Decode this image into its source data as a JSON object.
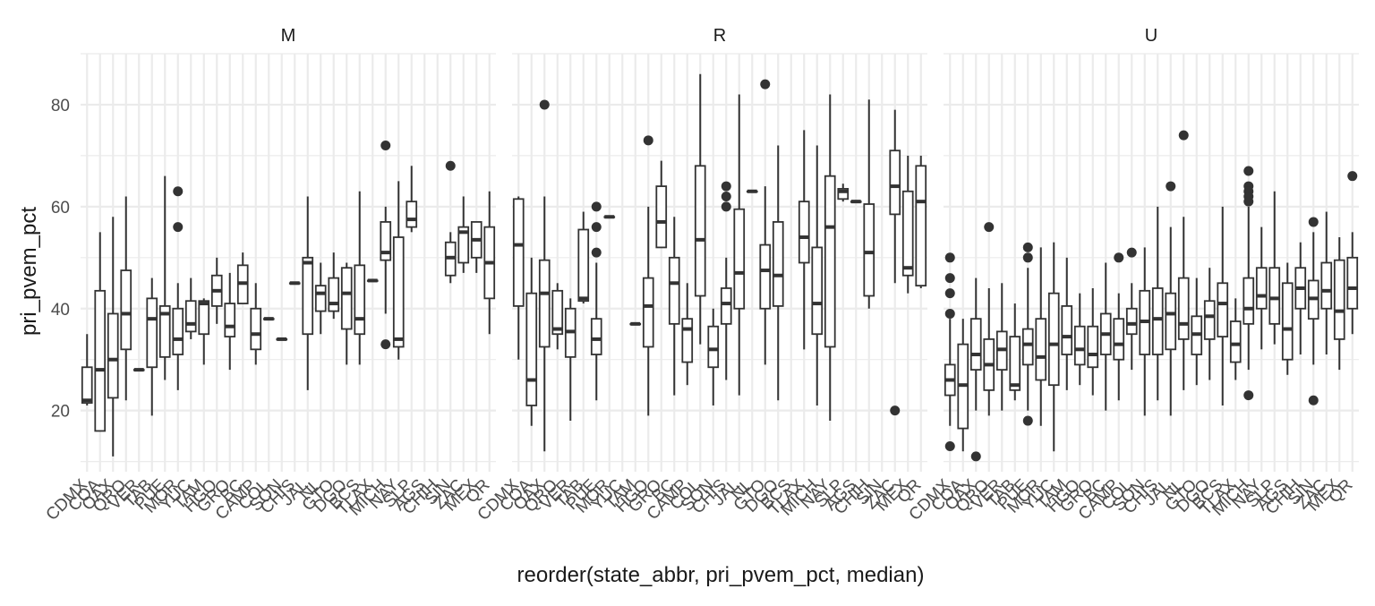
{
  "colors": {
    "background": "#ffffff",
    "grid": "#ebebeb",
    "box": "#333333",
    "text": "#4d4d4d",
    "title": "#1a1a1a"
  },
  "chart_data": {
    "type": "boxplot",
    "xlabel": "reorder(state_abbr, pri_pvem_pct, median)",
    "ylabel": "pri_pvem_pct",
    "ylim": [
      8,
      90
    ],
    "yticks": [
      20,
      40,
      60,
      80
    ],
    "grid": true,
    "categories": [
      "CDMX",
      "COA",
      "OAX",
      "QRO",
      "VER",
      "TAB",
      "PUE",
      "MOR",
      "YUC",
      "TAM",
      "HGO",
      "GRO",
      "BC",
      "CAMP",
      "COL",
      "SON",
      "CHIS",
      "JAL",
      "NL",
      "GTO",
      "DGO",
      "BCS",
      "TLAX",
      "MICH",
      "NAY",
      "SLP",
      "AGS",
      "CHIH",
      "SIN",
      "ZAC",
      "MEX",
      "QR"
    ],
    "xtick_labels": [
      "CDMX",
      "COA",
      "OAX",
      "QRO",
      "VER",
      "TAB",
      "PUE",
      "MOR",
      "YUC",
      "TAM",
      "HGO",
      "GRO",
      "BC",
      "CAMP",
      "COL",
      "SON",
      "CHIS",
      "JAL",
      "NL",
      "GTO",
      "DGO",
      "BCS",
      "TLAX",
      "MICH",
      "NAY",
      "SLP",
      "AGS",
      "CHIH",
      "SIN",
      "ZAC",
      "MEX",
      "QR"
    ],
    "facets": [
      {
        "label": "M",
        "series": [
          {
            "x": 1,
            "min": 21,
            "q1": 21.5,
            "median": 22,
            "q3": 28.5,
            "max": 35,
            "outliers": []
          },
          {
            "x": 2,
            "min": 16,
            "q1": 16,
            "median": 28,
            "q3": 43.5,
            "max": 55,
            "outliers": []
          },
          {
            "x": 3,
            "min": 11,
            "q1": 22.5,
            "median": 30,
            "q3": 39,
            "max": 58,
            "outliers": []
          },
          {
            "x": 4,
            "min": 22,
            "q1": 32,
            "median": 39,
            "q3": 47.5,
            "max": 62,
            "outliers": []
          },
          {
            "x": 5,
            "min": 28,
            "q1": 28,
            "median": 28,
            "q3": 28,
            "max": 28,
            "outliers": []
          },
          {
            "x": 6,
            "min": 19,
            "q1": 28.5,
            "median": 38,
            "q3": 42,
            "max": 46,
            "outliers": []
          },
          {
            "x": 7,
            "min": 26,
            "q1": 30.5,
            "median": 39,
            "q3": 40.5,
            "max": 66,
            "outliers": []
          },
          {
            "x": 8,
            "min": 24,
            "q1": 31,
            "median": 34,
            "q3": 40,
            "max": 45,
            "outliers": [
              63,
              56
            ]
          },
          {
            "x": 9,
            "min": 34,
            "q1": 35.5,
            "median": 37,
            "q3": 41.5,
            "max": 46,
            "outliers": []
          },
          {
            "x": 10,
            "min": 29,
            "q1": 35,
            "median": 41,
            "q3": 41.5,
            "max": 42,
            "outliers": []
          },
          {
            "x": 11,
            "min": 37,
            "q1": 40.5,
            "median": 43.5,
            "q3": 46.5,
            "max": 50,
            "outliers": []
          },
          {
            "x": 12,
            "min": 28,
            "q1": 34.5,
            "median": 36.5,
            "q3": 41,
            "max": 47,
            "outliers": []
          },
          {
            "x": 13,
            "min": 41,
            "q1": 41,
            "median": 45,
            "q3": 48.5,
            "max": 51,
            "outliers": []
          },
          {
            "x": 14,
            "min": 29,
            "q1": 32,
            "median": 35,
            "q3": 40,
            "max": 45,
            "outliers": []
          },
          {
            "x": 15,
            "min": 38,
            "q1": 38,
            "median": 38,
            "q3": 38,
            "max": 38,
            "outliers": []
          },
          {
            "x": 16,
            "min": 34,
            "q1": 34,
            "median": 34,
            "q3": 34,
            "max": 34,
            "outliers": []
          },
          {
            "x": 17,
            "min": 45,
            "q1": 45,
            "median": 45,
            "q3": 45,
            "max": 45,
            "outliers": []
          },
          {
            "x": 18,
            "min": 24,
            "q1": 35,
            "median": 49,
            "q3": 50,
            "max": 62,
            "outliers": []
          },
          {
            "x": 19,
            "min": 35,
            "q1": 39.5,
            "median": 43,
            "q3": 44.5,
            "max": 49,
            "outliers": []
          },
          {
            "x": 20,
            "min": 38,
            "q1": 39.5,
            "median": 41,
            "q3": 46,
            "max": 51,
            "outliers": []
          },
          {
            "x": 21,
            "min": 29,
            "q1": 36,
            "median": 43,
            "q3": 48,
            "max": 49,
            "outliers": []
          },
          {
            "x": 22,
            "min": 29,
            "q1": 35,
            "median": 38,
            "q3": 48.5,
            "max": 63,
            "outliers": []
          },
          {
            "x": 23,
            "min": 45.5,
            "q1": 45.5,
            "median": 45.5,
            "q3": 45.5,
            "max": 45.5,
            "outliers": []
          },
          {
            "x": 24,
            "min": 39,
            "q1": 49.5,
            "median": 51,
            "q3": 57,
            "max": 60,
            "outliers": [
              72,
              33
            ]
          },
          {
            "x": 25,
            "min": 30,
            "q1": 32.5,
            "median": 34,
            "q3": 54,
            "max": 65,
            "outliers": []
          },
          {
            "x": 26,
            "min": 55,
            "q1": 56,
            "median": 57.5,
            "q3": 61,
            "max": 68,
            "outliers": []
          },
          {
            "x": 29,
            "min": 45,
            "q1": 46.5,
            "median": 50,
            "q3": 53,
            "max": 55,
            "outliers": [
              68
            ]
          },
          {
            "x": 30,
            "min": 47,
            "q1": 49,
            "median": 55,
            "q3": 56,
            "max": 62,
            "outliers": []
          },
          {
            "x": 31,
            "min": 47,
            "q1": 50,
            "median": 53.5,
            "q3": 57,
            "max": 57,
            "outliers": []
          },
          {
            "x": 32,
            "min": 35,
            "q1": 42,
            "median": 49,
            "q3": 56,
            "max": 63,
            "outliers": []
          }
        ]
      },
      {
        "label": "R",
        "series": [
          {
            "x": 1,
            "min": 30,
            "q1": 40.5,
            "median": 52.5,
            "q3": 61.5,
            "max": 62,
            "outliers": []
          },
          {
            "x": 2,
            "min": 17,
            "q1": 21,
            "median": 26,
            "q3": 43,
            "max": 50,
            "outliers": []
          },
          {
            "x": 3,
            "min": 12,
            "q1": 32.5,
            "median": 43,
            "q3": 49.5,
            "max": 62,
            "outliers": [
              80
            ]
          },
          {
            "x": 4,
            "min": 32,
            "q1": 35,
            "median": 36,
            "q3": 43.5,
            "max": 45,
            "outliers": []
          },
          {
            "x": 5,
            "min": 18,
            "q1": 30.5,
            "median": 35.5,
            "q3": 40,
            "max": 42,
            "outliers": []
          },
          {
            "x": 6,
            "min": 41,
            "q1": 41.5,
            "median": 42,
            "q3": 55.5,
            "max": 59,
            "outliers": []
          },
          {
            "x": 7,
            "min": 22,
            "q1": 31,
            "median": 34,
            "q3": 38,
            "max": 49,
            "outliers": [
              60,
              56,
              51
            ]
          },
          {
            "x": 8,
            "min": 58,
            "q1": 58,
            "median": 58,
            "q3": 58,
            "max": 58,
            "outliers": []
          },
          {
            "x": 10,
            "min": 37,
            "q1": 37,
            "median": 37,
            "q3": 37,
            "max": 37,
            "outliers": []
          },
          {
            "x": 11,
            "min": 19,
            "q1": 32.5,
            "median": 40.5,
            "q3": 46,
            "max": 60,
            "outliers": [
              73
            ]
          },
          {
            "x": 12,
            "min": 52,
            "q1": 52,
            "median": 57,
            "q3": 64,
            "max": 69,
            "outliers": []
          },
          {
            "x": 13,
            "min": 23,
            "q1": 37,
            "median": 45,
            "q3": 50,
            "max": 58,
            "outliers": []
          },
          {
            "x": 14,
            "min": 25,
            "q1": 29.5,
            "median": 36,
            "q3": 38,
            "max": 45,
            "outliers": []
          },
          {
            "x": 15,
            "min": 33,
            "q1": 42.5,
            "median": 53.5,
            "q3": 68,
            "max": 86,
            "outliers": []
          },
          {
            "x": 16,
            "min": 21,
            "q1": 28.5,
            "median": 32,
            "q3": 36.5,
            "max": 40,
            "outliers": []
          },
          {
            "x": 17,
            "min": 26,
            "q1": 37,
            "median": 41,
            "q3": 44,
            "max": 50,
            "outliers": [
              64,
              62,
              60
            ]
          },
          {
            "x": 18,
            "min": 23,
            "q1": 40,
            "median": 47,
            "q3": 59.5,
            "max": 82,
            "outliers": []
          },
          {
            "x": 19,
            "min": 63,
            "q1": 63,
            "median": 63,
            "q3": 63,
            "max": 63,
            "outliers": []
          },
          {
            "x": 20,
            "min": 29,
            "q1": 40,
            "median": 47.5,
            "q3": 52.5,
            "max": 64,
            "outliers": [
              84
            ]
          },
          {
            "x": 21,
            "min": 22,
            "q1": 40.5,
            "median": 46.5,
            "q3": 57,
            "max": 72,
            "outliers": []
          },
          {
            "x": 23,
            "min": 32,
            "q1": 49,
            "median": 54,
            "q3": 61,
            "max": 75,
            "outliers": []
          },
          {
            "x": 24,
            "min": 21,
            "q1": 35,
            "median": 41,
            "q3": 52,
            "max": 72,
            "outliers": []
          },
          {
            "x": 25,
            "min": 18,
            "q1": 32.5,
            "median": 56,
            "q3": 66,
            "max": 82,
            "outliers": []
          },
          {
            "x": 26,
            "min": 61,
            "q1": 61.5,
            "median": 63,
            "q3": 63.5,
            "max": 64.5,
            "outliers": []
          },
          {
            "x": 27,
            "min": 61,
            "q1": 61,
            "median": 61,
            "q3": 61,
            "max": 61,
            "outliers": []
          },
          {
            "x": 28,
            "min": 40,
            "q1": 42.5,
            "median": 51,
            "q3": 60.5,
            "max": 81,
            "outliers": []
          },
          {
            "x": 30,
            "min": 45,
            "q1": 58.5,
            "median": 64,
            "q3": 71,
            "max": 79,
            "outliers": [
              20
            ]
          },
          {
            "x": 31,
            "min": 43,
            "q1": 46.5,
            "median": 48,
            "q3": 63,
            "max": 70,
            "outliers": []
          },
          {
            "x": 32,
            "min": 44,
            "q1": 44.5,
            "median": 61,
            "q3": 68,
            "max": 70,
            "outliers": []
          }
        ]
      },
      {
        "label": "U",
        "series": [
          {
            "x": 1,
            "min": 17,
            "q1": 23,
            "median": 26,
            "q3": 29,
            "max": 38,
            "outliers": [
              50,
              46,
              43,
              39,
              13
            ]
          },
          {
            "x": 2,
            "min": 12,
            "q1": 16.5,
            "median": 25,
            "q3": 33,
            "max": 38,
            "outliers": []
          },
          {
            "x": 3,
            "min": 20,
            "q1": 28,
            "median": 31,
            "q3": 38,
            "max": 46,
            "outliers": [
              11
            ]
          },
          {
            "x": 4,
            "min": 19,
            "q1": 24,
            "median": 29,
            "q3": 34,
            "max": 44,
            "outliers": [
              56
            ]
          },
          {
            "x": 5,
            "min": 20,
            "q1": 28,
            "median": 32,
            "q3": 35.5,
            "max": 45,
            "outliers": []
          },
          {
            "x": 6,
            "min": 22,
            "q1": 24,
            "median": 25,
            "q3": 34.5,
            "max": 41,
            "outliers": []
          },
          {
            "x": 7,
            "min": 20,
            "q1": 29,
            "median": 33,
            "q3": 36,
            "max": 48,
            "outliers": [
              52,
              50,
              18
            ]
          },
          {
            "x": 8,
            "min": 17,
            "q1": 26,
            "median": 30.5,
            "q3": 38,
            "max": 52,
            "outliers": []
          },
          {
            "x": 9,
            "min": 12,
            "q1": 25,
            "median": 33,
            "q3": 43,
            "max": 53,
            "outliers": []
          },
          {
            "x": 10,
            "min": 24,
            "q1": 31,
            "median": 34.5,
            "q3": 40.5,
            "max": 50,
            "outliers": []
          },
          {
            "x": 11,
            "min": 25,
            "q1": 29,
            "median": 32,
            "q3": 36.5,
            "max": 43,
            "outliers": []
          },
          {
            "x": 12,
            "min": 23,
            "q1": 28.5,
            "median": 31,
            "q3": 36.5,
            "max": 44,
            "outliers": []
          },
          {
            "x": 13,
            "min": 20,
            "q1": 31,
            "median": 35,
            "q3": 39,
            "max": 49,
            "outliers": []
          },
          {
            "x": 14,
            "min": 22,
            "q1": 30,
            "median": 33,
            "q3": 38,
            "max": 43,
            "outliers": [
              50
            ]
          },
          {
            "x": 15,
            "min": 28,
            "q1": 35,
            "median": 37,
            "q3": 40,
            "max": 45,
            "outliers": [
              51
            ]
          },
          {
            "x": 16,
            "min": 19,
            "q1": 31,
            "median": 37.5,
            "q3": 43.5,
            "max": 52,
            "outliers": []
          },
          {
            "x": 17,
            "min": 22,
            "q1": 31,
            "median": 38,
            "q3": 44,
            "max": 60,
            "outliers": []
          },
          {
            "x": 18,
            "min": 19,
            "q1": 32,
            "median": 39,
            "q3": 43,
            "max": 56,
            "outliers": [
              64
            ]
          },
          {
            "x": 19,
            "min": 24,
            "q1": 34,
            "median": 37,
            "q3": 46,
            "max": 58,
            "outliers": [
              74
            ]
          },
          {
            "x": 20,
            "min": 25,
            "q1": 31,
            "median": 35,
            "q3": 38.5,
            "max": 46,
            "outliers": []
          },
          {
            "x": 21,
            "min": 26,
            "q1": 34,
            "median": 38.5,
            "q3": 41.5,
            "max": 48,
            "outliers": []
          },
          {
            "x": 22,
            "min": 21,
            "q1": 34.5,
            "median": 41,
            "q3": 45,
            "max": 60,
            "outliers": []
          },
          {
            "x": 23,
            "min": 26,
            "q1": 29.5,
            "median": 33,
            "q3": 37.5,
            "max": 42,
            "outliers": []
          },
          {
            "x": 24,
            "min": 28,
            "q1": 37,
            "median": 40,
            "q3": 46,
            "max": 60,
            "outliers": [
              67,
              64,
              63,
              62,
              61,
              23
            ]
          },
          {
            "x": 25,
            "min": 32,
            "q1": 40,
            "median": 42.5,
            "q3": 48,
            "max": 56,
            "outliers": []
          },
          {
            "x": 26,
            "min": 33,
            "q1": 37,
            "median": 42,
            "q3": 48,
            "max": 63,
            "outliers": []
          },
          {
            "x": 27,
            "min": 27,
            "q1": 30,
            "median": 36,
            "q3": 45,
            "max": 49,
            "outliers": []
          },
          {
            "x": 28,
            "min": 31,
            "q1": 40,
            "median": 44,
            "q3": 48,
            "max": 53,
            "outliers": []
          },
          {
            "x": 29,
            "min": 29,
            "q1": 38,
            "median": 42,
            "q3": 45.5,
            "max": 55,
            "outliers": [
              57,
              22
            ]
          },
          {
            "x": 30,
            "min": 31,
            "q1": 40,
            "median": 43.5,
            "q3": 49,
            "max": 59,
            "outliers": []
          },
          {
            "x": 31,
            "min": 28,
            "q1": 34,
            "median": 39.5,
            "q3": 49.5,
            "max": 54,
            "outliers": []
          },
          {
            "x": 32,
            "min": 35,
            "q1": 40,
            "median": 44,
            "q3": 50,
            "max": 55,
            "outliers": [
              66
            ]
          }
        ]
      }
    ]
  }
}
